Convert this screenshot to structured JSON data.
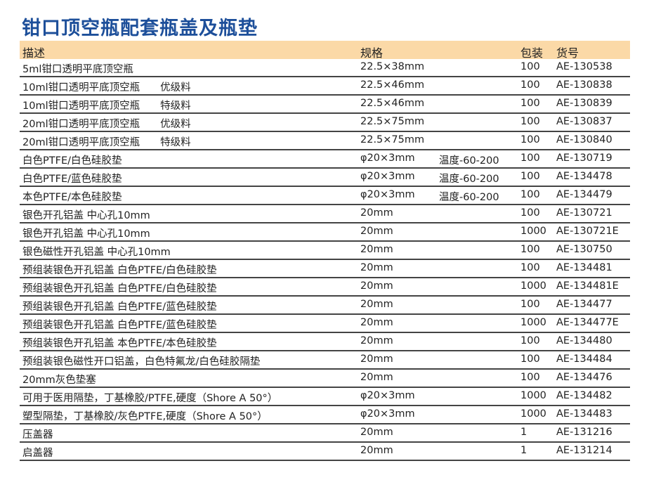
{
  "title": "钳口顶空瓶配套瓶盖及瓶垫",
  "header": {
    "desc": "描述",
    "spec": "规格",
    "pack": "包装",
    "code": "货号"
  },
  "colors": {
    "title": "#1d4f9a",
    "header_bg": "#fbd9a7"
  },
  "rows": [
    {
      "desc": "5ml钳口透明平底顶空瓶",
      "spec": "22.5×38mm",
      "temp": "",
      "pack": "100",
      "code": "AE-130538"
    },
    {
      "desc": "10ml钳口透明平底顶空瓶　　优级料",
      "spec": "22.5×46mm",
      "temp": "",
      "pack": "100",
      "code": "AE-130838"
    },
    {
      "desc": "10ml钳口透明平底顶空瓶　　特级料",
      "spec": "22.5×46mm",
      "temp": "",
      "pack": "100",
      "code": "AE-130839"
    },
    {
      "desc": "20ml钳口透明平底顶空瓶　　优级料",
      "spec": "22.5×75mm",
      "temp": "",
      "pack": "100",
      "code": "AE-130837"
    },
    {
      "desc": "20ml钳口透明平底顶空瓶　　特级料",
      "spec": "22.5×75mm",
      "temp": "",
      "pack": "100",
      "code": "AE-130840"
    },
    {
      "desc": "白色PTFE/白色硅胶垫",
      "spec": "φ20×3mm",
      "temp": "温度-60-200",
      "pack": "100",
      "code": "AE-130719"
    },
    {
      "desc": "白色PTFE/蓝色硅胶垫",
      "spec": "φ20×3mm",
      "temp": "温度-60-200",
      "pack": "100",
      "code": "AE-134478"
    },
    {
      "desc": "本色PTFE/本色硅胶垫",
      "spec": "φ20×3mm",
      "temp": "温度-60-200",
      "pack": "100",
      "code": "AE-134479"
    },
    {
      "desc": "银色开孔铝盖 中心孔10mm",
      "spec": "20mm",
      "temp": "",
      "pack": "100",
      "code": "AE-130721"
    },
    {
      "desc": "银色开孔铝盖 中心孔10mm",
      "spec": "20mm",
      "temp": "",
      "pack": "1000",
      "code": "AE-130721E"
    },
    {
      "desc": "银色磁性开孔铝盖 中心孔10mm",
      "spec": "20mm",
      "temp": "",
      "pack": "100",
      "code": "AE-130750"
    },
    {
      "desc": "预组装银色开孔铝盖 白色PTFE/白色硅胶垫",
      "spec": "20mm",
      "temp": "",
      "pack": "100",
      "code": "AE-134481"
    },
    {
      "desc": "预组装银色开孔铝盖 白色PTFE/白色硅胶垫",
      "spec": "20mm",
      "temp": "",
      "pack": "1000",
      "code": "AE-134481E"
    },
    {
      "desc": "预组装银色开孔铝盖 白色PTFE/蓝色硅胶垫",
      "spec": "20mm",
      "temp": "",
      "pack": "100",
      "code": "AE-134477"
    },
    {
      "desc": "预组装银色开孔铝盖 白色PTFE/蓝色硅胶垫",
      "spec": "20mm",
      "temp": "",
      "pack": "1000",
      "code": "AE-134477E"
    },
    {
      "desc": "预组装银色开孔铝盖 本色PTFE/本色硅胶垫",
      "spec": "20mm",
      "temp": "",
      "pack": "100",
      "code": "AE-134480"
    },
    {
      "desc": "预组装银色磁性开口铝盖，白色特氟龙/白色硅胶隔垫",
      "spec": "20mm",
      "temp": "",
      "pack": "100",
      "code": "AE-134484"
    },
    {
      "desc": "20mm灰色垫塞",
      "spec": "20mm",
      "temp": "",
      "pack": "100",
      "code": "AE-134476"
    },
    {
      "desc": "可用于医用隔垫，丁基橡胶/PTFE,硬度（Shore A 50°）",
      "spec": "φ20×3mm",
      "temp": "",
      "pack": "1000",
      "code": "AE-134482"
    },
    {
      "desc": "塑型隔垫，丁基橡胶/灰色PTFE,硬度（Shore A 50°）",
      "spec": "φ20×3mm",
      "temp": "",
      "pack": "1000",
      "code": "AE-134483"
    },
    {
      "desc": "压盖器",
      "spec": "20mm",
      "temp": "",
      "pack": "1",
      "code": "AE-131216"
    },
    {
      "desc": "启盖器",
      "spec": "20mm",
      "temp": "",
      "pack": "1",
      "code": "AE-131214"
    }
  ]
}
